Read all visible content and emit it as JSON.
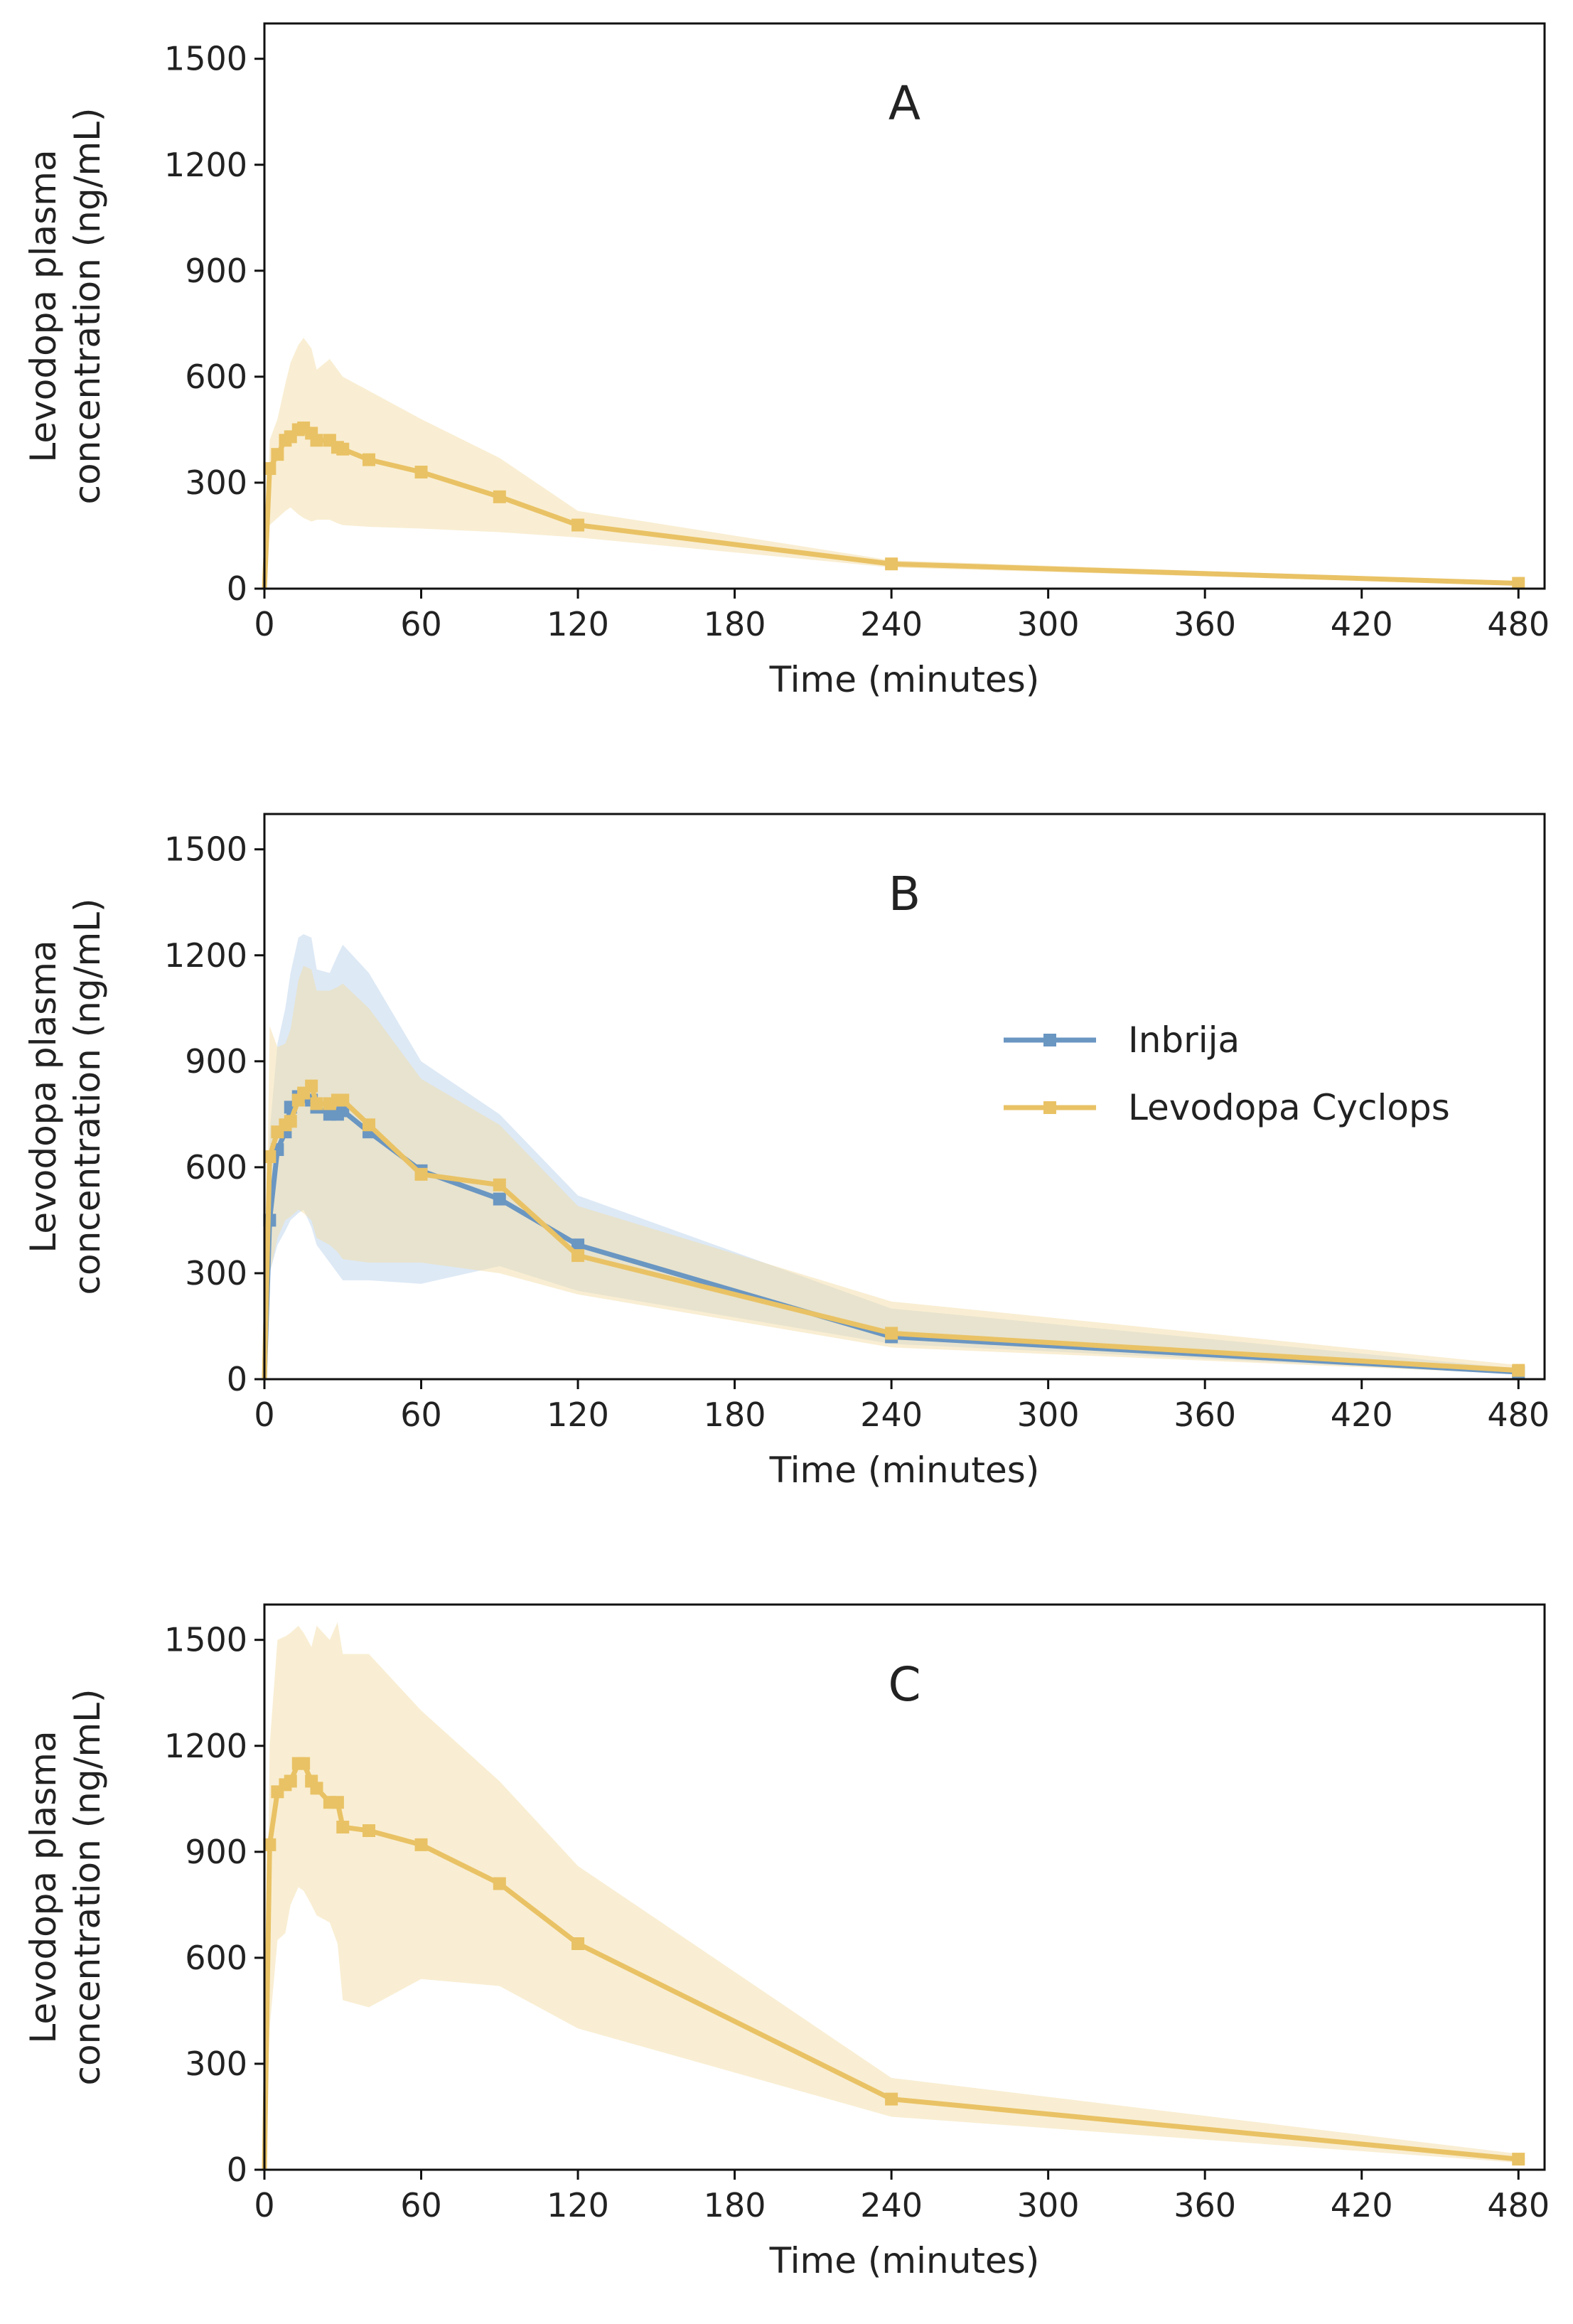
{
  "figure": {
    "colors": {
      "inbrija": "#6A96C2",
      "levodopa_cyclops": "#E9C265",
      "inbrija_band": "#C7DAEF",
      "levodopa_band": "#F3DEA7"
    }
  },
  "chart_data": [
    {
      "panel": "A",
      "type": "line",
      "title": "A",
      "xlabel": "Time (minutes)",
      "ylabel": "Levodopa plasma concentration (ng/mL)",
      "ylabel_lines": [
        "Levodopa plasma",
        "concentration (ng/mL)"
      ],
      "xlim": [
        0,
        490
      ],
      "ylim": [
        0,
        1600
      ],
      "xticks": [
        0,
        60,
        120,
        180,
        240,
        300,
        360,
        420,
        480
      ],
      "yticks": [
        0,
        300,
        600,
        900,
        1200,
        1500
      ],
      "legend": null,
      "series": [
        {
          "name": "Levodopa Cyclops",
          "color": "#E9C265",
          "x": [
            0,
            2,
            5,
            8,
            10,
            13,
            15,
            18,
            20,
            25,
            28,
            30,
            40,
            60,
            90,
            120,
            240,
            480
          ],
          "y": [
            0,
            340,
            380,
            420,
            430,
            450,
            455,
            440,
            420,
            420,
            400,
            395,
            365,
            330,
            260,
            180,
            70,
            15
          ],
          "band_lower": [
            0,
            180,
            200,
            220,
            230,
            210,
            200,
            190,
            195,
            195,
            185,
            180,
            175,
            170,
            160,
            145,
            60,
            10
          ],
          "band_upper": [
            0,
            420,
            480,
            580,
            640,
            690,
            710,
            680,
            620,
            650,
            620,
            600,
            560,
            480,
            370,
            220,
            80,
            20
          ]
        }
      ]
    },
    {
      "panel": "B",
      "type": "line",
      "title": "B",
      "xlabel": "Time (minutes)",
      "ylabel": "Levodopa plasma concentration (ng/mL)",
      "ylabel_lines": [
        "Levodopa plasma",
        "concentration (ng/mL)"
      ],
      "xlim": [
        0,
        490
      ],
      "ylim": [
        0,
        1600
      ],
      "xticks": [
        0,
        60,
        120,
        180,
        240,
        300,
        360,
        420,
        480
      ],
      "yticks": [
        0,
        300,
        600,
        900,
        1200,
        1500
      ],
      "legend": {
        "position": "right",
        "entries": [
          "Inbrija",
          "Levodopa Cyclops"
        ]
      },
      "series": [
        {
          "name": "Inbrija",
          "color": "#6A96C2",
          "x": [
            0,
            2,
            5,
            8,
            10,
            13,
            15,
            18,
            20,
            25,
            28,
            30,
            40,
            60,
            90,
            120,
            240,
            480
          ],
          "y": [
            0,
            450,
            650,
            700,
            770,
            800,
            800,
            790,
            770,
            750,
            750,
            760,
            700,
            590,
            510,
            380,
            120,
            20
          ],
          "band_lower": [
            0,
            300,
            380,
            420,
            450,
            470,
            480,
            430,
            380,
            330,
            300,
            280,
            280,
            270,
            320,
            250,
            100,
            15
          ],
          "band_upper": [
            0,
            700,
            950,
            1050,
            1150,
            1250,
            1260,
            1250,
            1160,
            1150,
            1200,
            1230,
            1150,
            900,
            750,
            520,
            200,
            30
          ]
        },
        {
          "name": "Levodopa Cyclops",
          "color": "#E9C265",
          "x": [
            0,
            2,
            5,
            8,
            10,
            13,
            15,
            18,
            20,
            25,
            28,
            30,
            40,
            60,
            90,
            120,
            240,
            480
          ],
          "y": [
            0,
            630,
            700,
            720,
            730,
            790,
            810,
            830,
            780,
            780,
            790,
            790,
            720,
            580,
            550,
            350,
            130,
            25
          ],
          "band_lower": [
            0,
            300,
            400,
            450,
            460,
            480,
            470,
            450,
            400,
            380,
            360,
            340,
            330,
            330,
            300,
            240,
            90,
            15
          ],
          "band_upper": [
            0,
            1000,
            940,
            950,
            990,
            1130,
            1170,
            1160,
            1100,
            1100,
            1110,
            1120,
            1050,
            850,
            720,
            490,
            220,
            40
          ]
        }
      ]
    },
    {
      "panel": "C",
      "type": "line",
      "title": "C",
      "xlabel": "Time (minutes)",
      "ylabel": "Levodopa plasma concentration (ng/mL)",
      "ylabel_lines": [
        "Levodopa plasma",
        "concentration (ng/mL)"
      ],
      "xlim": [
        0,
        490
      ],
      "ylim": [
        0,
        1600
      ],
      "xticks": [
        0,
        60,
        120,
        180,
        240,
        300,
        360,
        420,
        480
      ],
      "yticks": [
        0,
        300,
        600,
        900,
        1200,
        1500
      ],
      "legend": null,
      "series": [
        {
          "name": "Levodopa Cyclops",
          "color": "#E9C265",
          "x": [
            0,
            2,
            5,
            8,
            10,
            13,
            15,
            18,
            20,
            25,
            28,
            30,
            40,
            60,
            90,
            120,
            240,
            480
          ],
          "y": [
            0,
            920,
            1070,
            1090,
            1100,
            1150,
            1150,
            1100,
            1080,
            1040,
            1040,
            970,
            960,
            920,
            810,
            640,
            200,
            30
          ],
          "band_lower": [
            0,
            400,
            650,
            670,
            750,
            800,
            790,
            750,
            720,
            700,
            640,
            480,
            460,
            540,
            520,
            400,
            150,
            20
          ],
          "band_upper": [
            0,
            1200,
            1500,
            1510,
            1520,
            1540,
            1520,
            1480,
            1540,
            1500,
            1550,
            1460,
            1460,
            1300,
            1100,
            860,
            260,
            45
          ]
        }
      ]
    }
  ]
}
